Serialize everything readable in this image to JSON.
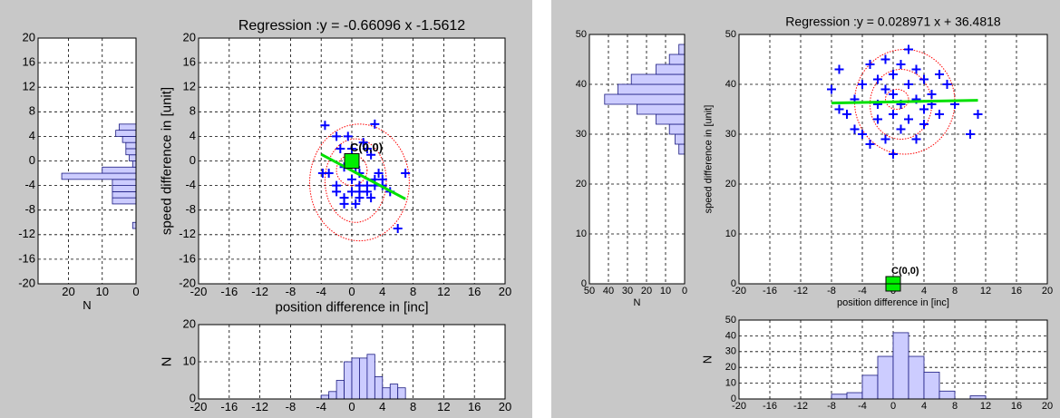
{
  "chart_data": [
    {
      "type": "histogram",
      "orientation": "horizontal",
      "xlabel": "N",
      "bins": [
        -11,
        -10,
        -9,
        -8,
        -7,
        -6,
        -5,
        -4,
        -3,
        -2,
        -1,
        0,
        1,
        2,
        3,
        4,
        5,
        6
      ],
      "counts": [
        1,
        0,
        0,
        0,
        7,
        7,
        7,
        7,
        22,
        10,
        1,
        2,
        3,
        3,
        4,
        6,
        5
      ],
      "color": "#ccccff",
      "edgecolor": "#1a1a80",
      "xlim": [
        29,
        0
      ],
      "xticks": [
        20,
        10,
        0
      ],
      "ylim": [
        -20,
        20
      ],
      "yticks": [
        -20,
        -16,
        -12,
        -8,
        -4,
        0,
        4,
        8,
        12,
        16,
        20
      ],
      "grid": true
    },
    {
      "type": "scatter",
      "title": "Regression :y =  -0.66096 x     -1.5612",
      "xlabel": "position difference in [inc]",
      "ylabel": "speed difference  in  [unit]",
      "x": [
        -3.5,
        -3,
        -2,
        -2,
        -1.5,
        -1,
        -1,
        -0.5,
        0,
        0,
        0,
        0.5,
        1,
        1,
        1,
        1.5,
        2,
        2,
        2,
        2.5,
        3,
        3,
        3,
        3.5,
        4,
        4,
        5,
        6,
        7,
        -3.8,
        -1,
        1,
        -2,
        0.5,
        2.5
      ],
      "y": [
        5.8,
        -2,
        4,
        -5,
        2,
        -1,
        -7,
        4,
        2,
        -3,
        -5,
        -1,
        -2,
        -4,
        -6,
        3,
        2,
        -4,
        -5,
        1,
        6,
        -3,
        -4,
        -2,
        -3,
        -4,
        -5,
        -11,
        -2,
        -2,
        -6,
        -5,
        -4,
        -7,
        -6
      ],
      "color": "#0000ff",
      "regression_line": {
        "x": [
          -4,
          7
        ],
        "y": [
          1.08,
          -6.19
        ],
        "color": "#00e000"
      },
      "ellipses": [
        {
          "cx": 1,
          "cy": -3.5,
          "rx": 6.5,
          "ry": 9.5
        },
        {
          "cx": 0.5,
          "cy": -3.2,
          "rx": 4,
          "ry": 6.8
        },
        {
          "cx": 0,
          "cy": -1.5,
          "rx": 2,
          "ry": 2.5
        }
      ],
      "ellipse_color": "#ff0000",
      "center_marker": {
        "x": 0,
        "y": 0,
        "label": "C(0,0)",
        "color": "#00ee00"
      },
      "xlim": [
        -20,
        20
      ],
      "xticks": [
        -20,
        -16,
        -12,
        -8,
        -4,
        0,
        4,
        8,
        12,
        16,
        20
      ],
      "ylim": [
        -20,
        20
      ],
      "yticks": [
        -20,
        -16,
        -12,
        -8,
        -4,
        0,
        4,
        8,
        12,
        16,
        20
      ],
      "grid": true
    },
    {
      "type": "histogram",
      "orientation": "vertical",
      "ylabel": "N",
      "bins": [
        -4,
        -3,
        -2,
        -1,
        0,
        1,
        2,
        3,
        4,
        5,
        6,
        7
      ],
      "counts": [
        1,
        2,
        5,
        10,
        11,
        11,
        12,
        6,
        3,
        4,
        3
      ],
      "color": "#ccccff",
      "edgecolor": "#1a1a80",
      "xlim": [
        -20,
        20
      ],
      "xticks": [
        -20,
        -16,
        -12,
        -8,
        -4,
        0,
        4,
        8,
        12,
        16,
        20
      ],
      "ylim": [
        0,
        20
      ],
      "yticks": [
        0,
        10,
        20
      ],
      "grid": true
    },
    {
      "type": "histogram",
      "orientation": "horizontal",
      "xlabel": "N",
      "bins": [
        26,
        28,
        30,
        32,
        34,
        36,
        38,
        40,
        42,
        44,
        46,
        48
      ],
      "counts": [
        3,
        5,
        8,
        15,
        25,
        42,
        35,
        28,
        15,
        8,
        3
      ],
      "color": "#ccccff",
      "edgecolor": "#1a1a80",
      "xlim": [
        50,
        0
      ],
      "xticks": [
        50,
        40,
        30,
        20,
        10,
        0
      ],
      "ylim": [
        0,
        50
      ],
      "yticks": [
        0,
        10,
        20,
        30,
        40,
        50
      ],
      "grid": true
    },
    {
      "type": "scatter",
      "title": "Regression :y =  0.028971 x  +  36.4818",
      "xlabel": "position difference in [inc]",
      "ylabel": "speed difference  in  [unit]",
      "x": [
        -8,
        -7,
        -7,
        -6,
        -5,
        -5,
        -4,
        -4,
        -3,
        -3,
        -2,
        -2,
        -2,
        -1,
        -1,
        -1,
        0,
        0,
        0,
        0,
        1,
        1,
        1,
        2,
        2,
        2,
        3,
        3,
        3,
        4,
        4,
        4,
        5,
        5,
        6,
        6,
        7,
        8,
        10,
        11
      ],
      "y": [
        39,
        35,
        43,
        34,
        31,
        37,
        40,
        30,
        44,
        28,
        36,
        41,
        33,
        39,
        45,
        29,
        38,
        42,
        34,
        26,
        36,
        44,
        31,
        40,
        47,
        33,
        37,
        43,
        29,
        35,
        41,
        32,
        38,
        36,
        42,
        34,
        40,
        36,
        30,
        34
      ],
      "color": "#0000ff",
      "regression_line": {
        "x": [
          -8,
          11
        ],
        "y": [
          36.25,
          36.8
        ],
        "color": "#00e000"
      },
      "ellipses": [
        {
          "cx": 1.5,
          "cy": 36.5,
          "rx": 6.5,
          "ry": 10.5
        },
        {
          "cx": 1,
          "cy": 36,
          "rx": 4,
          "ry": 7
        },
        {
          "cx": 0.5,
          "cy": 37,
          "rx": 1.5,
          "ry": 2
        }
      ],
      "ellipse_color": "#ff0000",
      "center_marker": {
        "x": 0,
        "y": 0,
        "label": "C(0,0)",
        "color": "#00ee00"
      },
      "xlim": [
        -20,
        20
      ],
      "xticks": [
        -20,
        -16,
        -12,
        -8,
        -4,
        0,
        4,
        8,
        12,
        16,
        20
      ],
      "ylim": [
        0,
        50
      ],
      "yticks": [
        0,
        10,
        20,
        30,
        40,
        50
      ],
      "grid": true
    },
    {
      "type": "histogram",
      "orientation": "vertical",
      "ylabel": "N",
      "bins": [
        -8,
        -6,
        -4,
        -2,
        0,
        2,
        4,
        6,
        8,
        10,
        12
      ],
      "counts": [
        3,
        4,
        15,
        27,
        42,
        27,
        17,
        5,
        0,
        2
      ],
      "color": "#ccccff",
      "edgecolor": "#1a1a80",
      "xlim": [
        -20,
        20
      ],
      "xticks": [
        -20,
        -16,
        -12,
        -8,
        -4,
        0,
        4,
        8,
        12,
        16,
        20
      ],
      "ylim": [
        0,
        50
      ],
      "yticks": [
        0,
        10,
        20,
        30,
        40,
        50
      ],
      "grid": true
    }
  ]
}
